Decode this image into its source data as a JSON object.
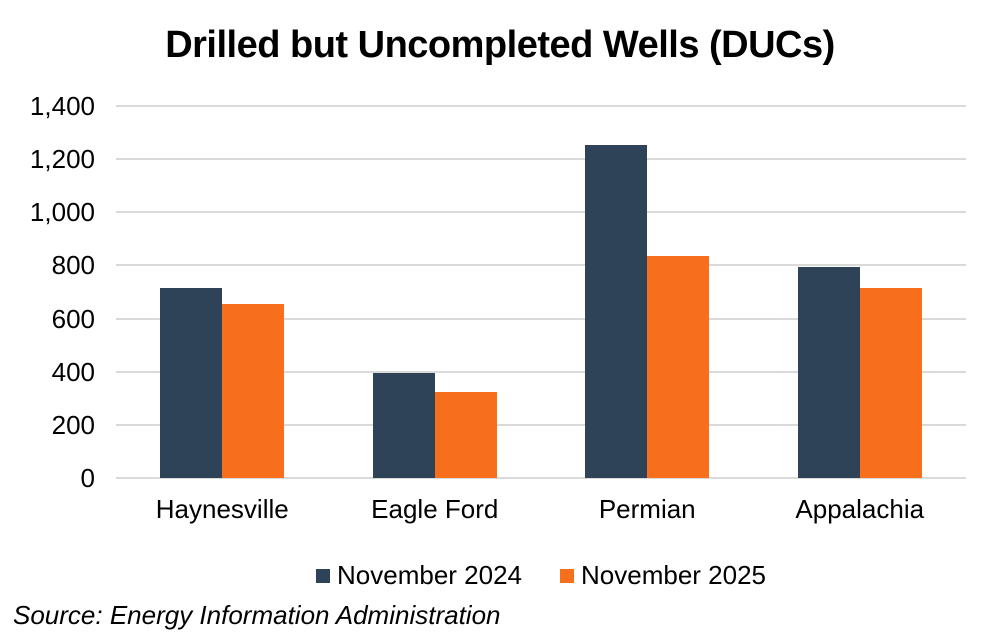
{
  "title": "Drilled but Uncompleted Wells (DUCs)",
  "source": "Source: Energy Information Administration",
  "colors": {
    "series_navy": "#2E4357",
    "series_orange": "#F76F1D",
    "gridline": "#D9D9D9",
    "text": "#000000",
    "background": "#FFFFFF"
  },
  "legend": {
    "items": [
      {
        "label": "November 2024",
        "color": "#2E4357"
      },
      {
        "label": "November 2025",
        "color": "#F76F1D"
      }
    ]
  },
  "chart_data": {
    "type": "bar",
    "title": "Drilled but Uncompleted Wells (DUCs)",
    "categories": [
      "Haynesville",
      "Eagle Ford",
      "Permian",
      "Appalachia"
    ],
    "series": [
      {
        "name": "November 2024",
        "color": "#2E4357",
        "values": [
          715,
          395,
          1255,
          795
        ]
      },
      {
        "name": "November 2025",
        "color": "#F76F1D",
        "values": [
          655,
          325,
          835,
          715
        ]
      }
    ],
    "xlabel": "",
    "ylabel": "",
    "ylim": [
      0,
      1400
    ],
    "y_ticks": [
      0,
      200,
      400,
      600,
      800,
      1000,
      1200,
      1400
    ],
    "y_tick_labels": [
      "0",
      "200",
      "400",
      "600",
      "800",
      "1,000",
      "1,200",
      "1,400"
    ],
    "grid": true,
    "legend_position": "bottom",
    "source": "Source: Energy Information Administration"
  }
}
